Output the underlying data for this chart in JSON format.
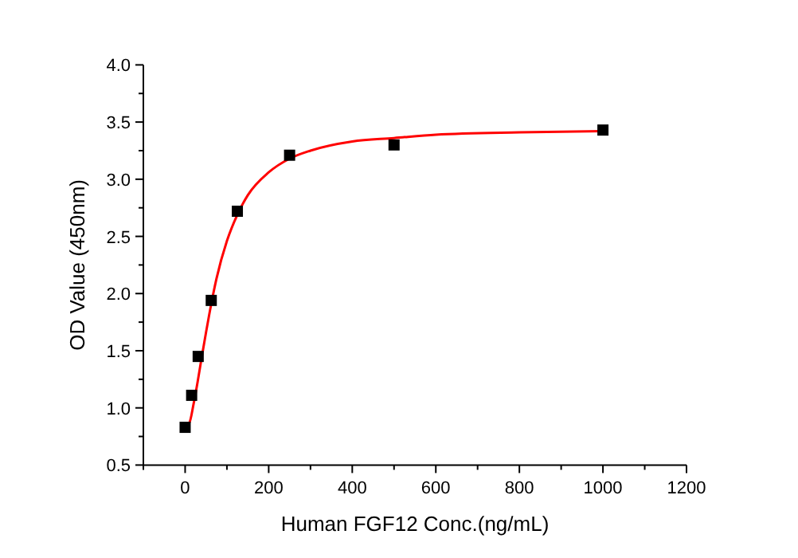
{
  "chart_data": {
    "type": "scatter",
    "xlabel": "Human FGF12 Conc.(ng/mL)",
    "ylabel": "OD Value (450nm)",
    "xlim": [
      -100,
      1200
    ],
    "ylim": [
      0.5,
      4.0
    ],
    "xticks": [
      {
        "value": -100,
        "label": null
      },
      0,
      {
        "value": 100,
        "label": null
      },
      200,
      {
        "value": 300,
        "label": null
      },
      400,
      {
        "value": 500,
        "label": null
      },
      600,
      {
        "value": 700,
        "label": null
      },
      800,
      {
        "value": 900,
        "label": null
      },
      1000,
      {
        "value": 1100,
        "label": null
      },
      1200
    ],
    "yticks": [
      {
        "value": 0.5,
        "label": "0.5"
      },
      {
        "value": 0.75,
        "label": null
      },
      {
        "value": 1,
        "label": "1.0"
      },
      {
        "value": 1.25,
        "label": null
      },
      {
        "value": 1.5,
        "label": "1.5"
      },
      {
        "value": 1.75,
        "label": null
      },
      {
        "value": 2,
        "label": "2.0"
      },
      {
        "value": 2.25,
        "label": null
      },
      {
        "value": 2.5,
        "label": "2.5"
      },
      {
        "value": 2.75,
        "label": null
      },
      {
        "value": 3,
        "label": "3.0"
      },
      {
        "value": 3.25,
        "label": null
      },
      {
        "value": 3.5,
        "label": "3.5"
      },
      {
        "value": 3.75,
        "label": null
      },
      {
        "value": 4,
        "label": "4.0"
      }
    ],
    "series": [
      {
        "type": "line",
        "color": "#ff0000",
        "marker": "none",
        "x": [
          0,
          10,
          20,
          30,
          40,
          50,
          62.5,
          75,
          100,
          125,
          150,
          200,
          250,
          300,
          400,
          500,
          600,
          800,
          1000
        ],
        "values": [
          0.85,
          0.87,
          1.03,
          1.23,
          1.45,
          1.66,
          1.91,
          2.13,
          2.46,
          2.69,
          2.86,
          3.06,
          3.18,
          3.25,
          3.33,
          3.36,
          3.39,
          3.41,
          3.42
        ]
      },
      {
        "color": "#000000",
        "marker": "square",
        "x": [
          0,
          15.6,
          31.25,
          62.5,
          125,
          250,
          500,
          1000
        ],
        "values": [
          0.83,
          1.11,
          1.45,
          1.94,
          2.72,
          3.21,
          3.3,
          3.43
        ]
      }
    ]
  }
}
